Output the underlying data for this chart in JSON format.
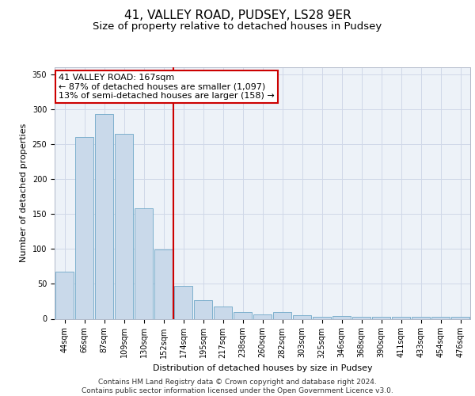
{
  "title_line1": "41, VALLEY ROAD, PUDSEY, LS28 9ER",
  "title_line2": "Size of property relative to detached houses in Pudsey",
  "xlabel": "Distribution of detached houses by size in Pudsey",
  "ylabel": "Number of detached properties",
  "categories": [
    "44sqm",
    "66sqm",
    "87sqm",
    "109sqm",
    "130sqm",
    "152sqm",
    "174sqm",
    "195sqm",
    "217sqm",
    "238sqm",
    "260sqm",
    "282sqm",
    "303sqm",
    "325sqm",
    "346sqm",
    "368sqm",
    "390sqm",
    "411sqm",
    "433sqm",
    "454sqm",
    "476sqm"
  ],
  "values": [
    68,
    260,
    293,
    265,
    158,
    99,
    47,
    27,
    18,
    10,
    6,
    10,
    5,
    3,
    4,
    3,
    3,
    3,
    3,
    3,
    3
  ],
  "bar_color": "#c9d9ea",
  "bar_edge_color": "#6fa8c8",
  "vline_x_index": 6,
  "vline_color": "#cc0000",
  "annotation_box_text": "41 VALLEY ROAD: 167sqm\n← 87% of detached houses are smaller (1,097)\n13% of semi-detached houses are larger (158) →",
  "ylim": [
    0,
    360
  ],
  "yticks": [
    0,
    50,
    100,
    150,
    200,
    250,
    300,
    350
  ],
  "footer_text": "Contains HM Land Registry data © Crown copyright and database right 2024.\nContains public sector information licensed under the Open Government Licence v3.0.",
  "title_fontsize": 11,
  "subtitle_fontsize": 9.5,
  "axis_label_fontsize": 8,
  "tick_fontsize": 7,
  "footer_fontsize": 6.5,
  "annotation_fontsize": 8,
  "bg_color": "#ffffff",
  "grid_color": "#d0d8e8",
  "ax_bg_color": "#edf2f8"
}
